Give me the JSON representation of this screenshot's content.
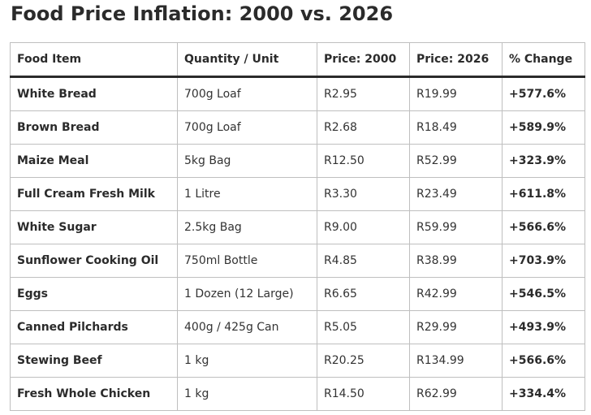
{
  "title": "Food Price Inflation: 2000 vs. 2026",
  "table": {
    "headers": [
      "Food Item",
      "Quantity / Unit",
      "Price: 2000",
      "Price: 2026",
      "% Change"
    ],
    "rows": [
      {
        "item": "White Bread",
        "unit": "700g Loaf",
        "price_2000": "R2.95",
        "price_2026": "R19.99",
        "change": "+577.6%"
      },
      {
        "item": "Brown Bread",
        "unit": "700g Loaf",
        "price_2000": "R2.68",
        "price_2026": "R18.49",
        "change": "+589.9%"
      },
      {
        "item": "Maize Meal",
        "unit": "5kg Bag",
        "price_2000": "R12.50",
        "price_2026": "R52.99",
        "change": "+323.9%"
      },
      {
        "item": "Full Cream Fresh Milk",
        "unit": "1 Litre",
        "price_2000": "R3.30",
        "price_2026": "R23.49",
        "change": "+611.8%"
      },
      {
        "item": "White Sugar",
        "unit": "2.5kg Bag",
        "price_2000": "R9.00",
        "price_2026": "R59.99",
        "change": "+566.6%"
      },
      {
        "item": "Sunflower Cooking Oil",
        "unit": "750ml Bottle",
        "price_2000": "R4.85",
        "price_2026": "R38.99",
        "change": "+703.9%"
      },
      {
        "item": "Eggs",
        "unit": "1 Dozen (12 Large)",
        "price_2000": "R6.65",
        "price_2026": "R42.99",
        "change": "+546.5%"
      },
      {
        "item": "Canned Pilchards",
        "unit": "400g / 425g Can",
        "price_2000": "R5.05",
        "price_2026": "R29.99",
        "change": "+493.9%"
      },
      {
        "item": "Stewing Beef",
        "unit": "1 kg",
        "price_2000": "R20.25",
        "price_2026": "R134.99",
        "change": "+566.6%"
      },
      {
        "item": "Fresh Whole Chicken",
        "unit": "1 kg",
        "price_2000": "R14.50",
        "price_2026": "R62.99",
        "change": "+334.4%"
      }
    ]
  }
}
